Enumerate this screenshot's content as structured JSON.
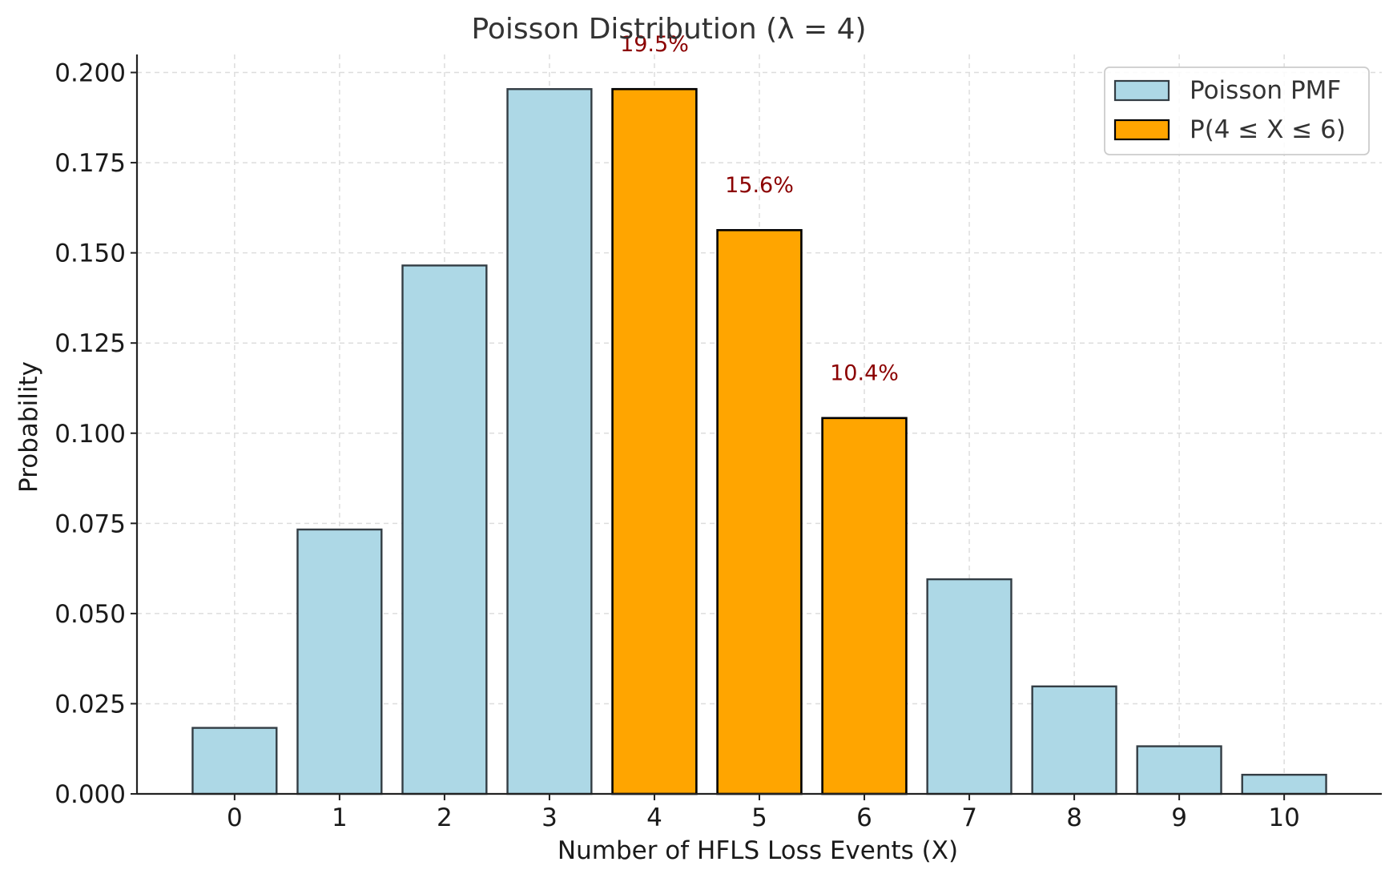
{
  "chart_data": {
    "type": "bar",
    "title": "Poisson Distribution (λ = 4)",
    "xlabel": "Number of HFLS Loss Events (X)",
    "ylabel": "Probability",
    "categories": [
      "0",
      "1",
      "2",
      "3",
      "4",
      "5",
      "6",
      "7",
      "8",
      "9",
      "10"
    ],
    "x": [
      0,
      1,
      2,
      3,
      4,
      5,
      6,
      7,
      8,
      9,
      10
    ],
    "series": [
      {
        "name": "Poisson PMF",
        "x": [
          0,
          1,
          2,
          3,
          7,
          8,
          9,
          10
        ],
        "values": [
          0.0183,
          0.0733,
          0.1465,
          0.1954,
          0.0595,
          0.0298,
          0.0132,
          0.0053
        ],
        "color": "#add8e6"
      },
      {
        "name": "P(4 ≤ X ≤ 6)",
        "x": [
          4,
          5,
          6
        ],
        "values": [
          0.1954,
          0.1563,
          0.1042
        ],
        "color": "#ffa500"
      }
    ],
    "annotations": [
      {
        "x": 4,
        "text": "19.5%"
      },
      {
        "x": 5,
        "text": "15.6%"
      },
      {
        "x": 6,
        "text": "10.4%"
      }
    ],
    "annotation_color": "#8b0000",
    "yticks": [
      "0.000",
      "0.025",
      "0.050",
      "0.075",
      "0.100",
      "0.125",
      "0.150",
      "0.175",
      "0.200"
    ],
    "ytick_values": [
      0,
      0.025,
      0.05,
      0.075,
      0.1,
      0.125,
      0.15,
      0.175,
      0.2
    ],
    "xlim": [
      -0.93,
      10.93
    ],
    "ylim": [
      0,
      0.205
    ],
    "grid": true,
    "legend_position": "top-right"
  }
}
